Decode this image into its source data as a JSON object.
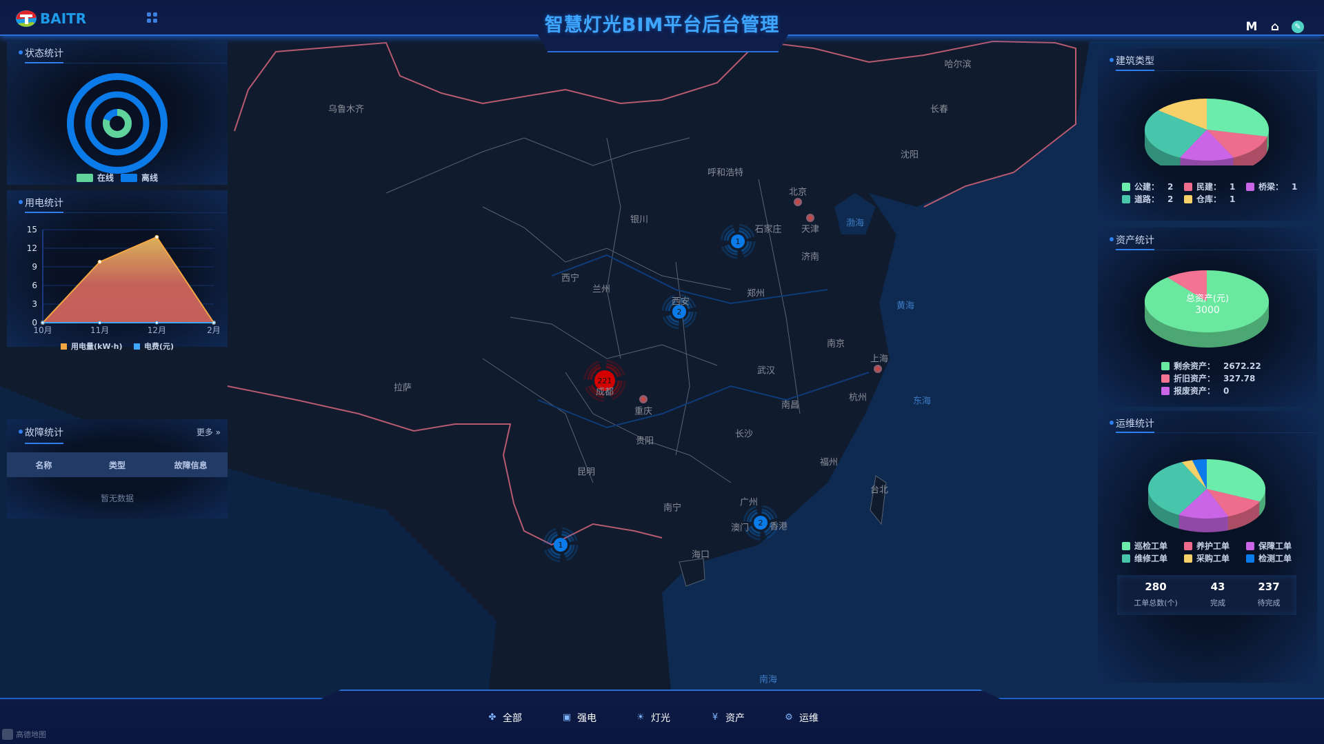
{
  "header": {
    "logo_text": "BAITR",
    "title": "智慧灯光BIM平台后台管理",
    "icons": [
      "grid-menu-icon",
      "mail-icon",
      "home-icon",
      "user-avatar-icon"
    ]
  },
  "map": {
    "cities": [
      "乌鲁木齐",
      "哈尔滨",
      "长春",
      "沈阳",
      "呼和浩特",
      "北京",
      "天津",
      "石家庄",
      "银川",
      "济南",
      "西宁",
      "兰州",
      "郑州",
      "西安",
      "南京",
      "上海",
      "武汉",
      "成都",
      "重庆",
      "拉萨",
      "杭州",
      "南昌",
      "贵阳",
      "长沙",
      "福州",
      "昆明",
      "台北",
      "广州",
      "南宁",
      "澳门",
      "香港",
      "海口"
    ],
    "seas": [
      "渤海",
      "黄海",
      "东海",
      "南海"
    ],
    "clusters": [
      {
        "count": "1",
        "color": "#0a7be8"
      },
      {
        "count": "2",
        "color": "#0a7be8"
      },
      {
        "count": "221",
        "color": "#d40000"
      },
      {
        "count": "2",
        "color": "#0a7be8"
      },
      {
        "count": "1",
        "color": "#0a7be8"
      }
    ],
    "watermark": "高德地图"
  },
  "status": {
    "title": "状态统计",
    "legend": [
      {
        "label": "在线",
        "color": "#5fd39a"
      },
      {
        "label": "离线",
        "color": "#0a7be8"
      }
    ],
    "rings_online_fraction": [
      0,
      0,
      0.8
    ]
  },
  "power": {
    "title": "用电统计"
  },
  "chart_data": {
    "type": "area",
    "categories": [
      "10月",
      "11月",
      "12月",
      "2月"
    ],
    "series": [
      {
        "name": "用电量(kW·h)",
        "values": [
          0,
          9.8,
          13.8,
          0
        ],
        "color": "#f5a742"
      },
      {
        "name": "电费(元)",
        "values": [
          0,
          0,
          0,
          0
        ],
        "color": "#3ea6ff"
      }
    ],
    "yticks": [
      "0",
      "3",
      "6",
      "9",
      "12",
      "15"
    ],
    "ylim": [
      0,
      15
    ],
    "grid": true,
    "legend": "bottom"
  },
  "faults": {
    "title": "故障统计",
    "more": "更多",
    "columns": [
      "名称",
      "类型",
      "故障信息"
    ],
    "empty": "暂无数据"
  },
  "building": {
    "title": "建筑类型",
    "items": [
      {
        "label": "公建：",
        "value": 2,
        "color": "#6cecaa"
      },
      {
        "label": "民建：",
        "value": 1,
        "color": "#ee6d8c"
      },
      {
        "label": "桥梁：",
        "value": 1,
        "color": "#c965e6"
      },
      {
        "label": "道路：",
        "value": 2,
        "color": "#47c6ab"
      },
      {
        "label": "仓库：",
        "value": 1,
        "color": "#f7d06a"
      }
    ]
  },
  "assets": {
    "title": "资产统计",
    "center_label": "总资产(元)",
    "center_value": "3000",
    "items": [
      {
        "label": "剩余资产：",
        "value": 2672.22,
        "color": "#6ae8a0"
      },
      {
        "label": "折旧资产：",
        "value": 327.78,
        "color": "#f27392"
      },
      {
        "label": "报废资产：",
        "value": 0,
        "color": "#c965e6"
      }
    ]
  },
  "ops": {
    "title": "运维统计",
    "items": [
      {
        "label": "巡检工单",
        "share": 32,
        "color": "#6cecaa"
      },
      {
        "label": "养护工单",
        "share": 12,
        "color": "#ee6d8c"
      },
      {
        "label": "保障工单",
        "share": 14,
        "color": "#c965e6"
      },
      {
        "label": "维修工单",
        "share": 35,
        "color": "#47c6ab"
      },
      {
        "label": "采购工单",
        "share": 3,
        "color": "#f7d06a"
      },
      {
        "label": "检测工单",
        "share": 4,
        "color": "#0a7be8"
      }
    ],
    "stats": [
      {
        "value": "280",
        "label": "工单总数(个)"
      },
      {
        "value": "43",
        "label": "完成"
      },
      {
        "value": "237",
        "label": "待完成"
      }
    ]
  },
  "bottom_nav": [
    {
      "label": "全部",
      "icon": "grid-icon"
    },
    {
      "label": "强电",
      "icon": "power-box-icon"
    },
    {
      "label": "灯光",
      "icon": "bulb-icon"
    },
    {
      "label": "资产",
      "icon": "yen-icon"
    },
    {
      "label": "运维",
      "icon": "gear-icon"
    }
  ]
}
